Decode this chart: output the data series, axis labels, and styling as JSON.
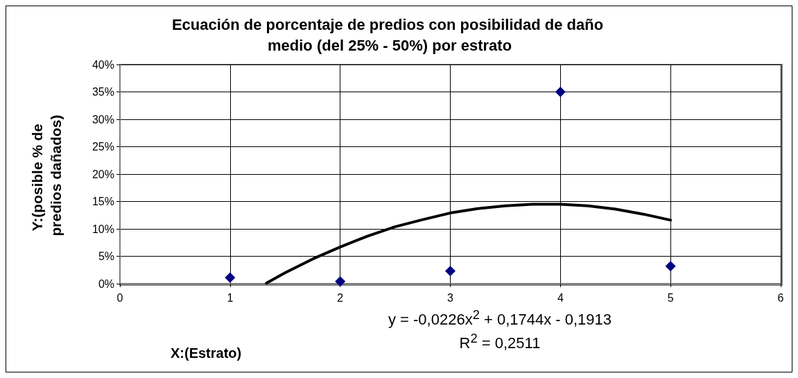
{
  "chart_data": {
    "type": "scatter",
    "title": "Ecuación de porcentaje de predios con posibilidad de daño medio (del 25% - 50%) por estrato",
    "xlabel": "X:(Estrato)",
    "ylabel": "Y:(posible % de predios dañados)",
    "annotations": [
      "y = -0,0226x$^{2}$ + 0,1744x - 0,1913",
      "R$^{2}$ = 0,2511"
    ],
    "x": [
      1,
      2,
      3,
      4,
      5
    ],
    "series": [
      {
        "color": "#000080",
        "values": [
          1.1,
          0.4,
          2.3,
          35,
          3.2
        ],
        "marker": "diamond"
      },
      {
        "type": "line",
        "color": "#000000",
        "x": [
          1.33,
          1.5,
          1.75,
          2,
          2.25,
          2.5,
          2.75,
          3,
          3.25,
          3.5,
          3.75,
          4,
          4.25,
          4.5,
          4.75,
          5
        ],
        "values": [
          0.1,
          2,
          4.5,
          6.7,
          8.7,
          10.4,
          11.7,
          12.9,
          13.7,
          14.2,
          14.5,
          14.5,
          14.2,
          13.6,
          12.7,
          11.6
        ],
        "marker": "none",
        "line_style": "solid"
      }
    ],
    "xlim": [
      0,
      6
    ],
    "xticks": [
      0,
      1,
      2,
      3,
      4,
      5,
      6
    ],
    "ylim": [
      0,
      40
    ],
    "yticks": [
      {
        "value": 0,
        "label": "0%"
      },
      {
        "value": 5,
        "label": "5%"
      },
      {
        "value": 10,
        "label": "10%"
      },
      {
        "value": 15,
        "label": "15%"
      },
      {
        "value": 20,
        "label": "20%"
      },
      {
        "value": 25,
        "label": "25%"
      },
      {
        "value": 30,
        "label": "30%"
      },
      {
        "value": 35,
        "label": "35%"
      },
      {
        "value": 40,
        "label": "40%"
      }
    ],
    "grid": true
  }
}
